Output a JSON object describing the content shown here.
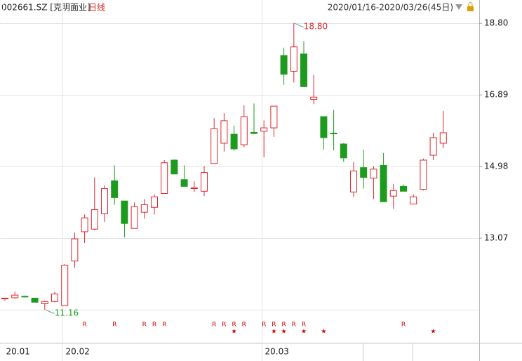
{
  "chart_data": {
    "type": "candlestick",
    "title": "002661.SZ [克明面业]",
    "period": "日线",
    "range_label": "2020/01/16-2020/03/26(45日)",
    "categories": [
      "20.01",
      null,
      null,
      null,
      null,
      null,
      "20.02",
      null,
      null,
      null,
      null,
      null,
      null,
      null,
      null,
      null,
      null,
      null,
      null,
      null,
      null,
      null,
      null,
      null,
      null,
      null,
      "20.03",
      null,
      null,
      null,
      null,
      null,
      null,
      null,
      null,
      null,
      null,
      null,
      null,
      null,
      null,
      null,
      null,
      null,
      null
    ],
    "open": [
      11.45,
      11.48,
      11.52,
      11.47,
      11.32,
      11.38,
      11.27,
      12.46,
      13.24,
      13.31,
      13.72,
      14.6,
      14.06,
      13.33,
      13.76,
      13.89,
      14.26,
      15.15,
      14.63,
      14.4,
      14.32,
      15.06,
      15.6,
      15.84,
      15.56,
      15.89,
      15.92,
      16.01,
      17.94,
      17.52,
      17.98,
      16.77,
      16.31,
      15.87,
      15.58,
      14.3,
      14.95,
      14.67,
      15.01,
      14.19,
      14.45,
      13.98,
      14.37,
      15.28,
      15.6
    ],
    "high": [
      11.48,
      11.64,
      11.54,
      11.48,
      11.4,
      11.64,
      12.38,
      13.22,
      13.7,
      14.69,
      14.48,
      15.01,
      14.06,
      14.02,
      14.11,
      14.24,
      15.15,
      15.17,
      15.01,
      14.58,
      14.99,
      16.27,
      16.4,
      16.07,
      16.61,
      16.66,
      16.21,
      16.59,
      18.15,
      18.8,
      18.32,
      17.42,
      16.31,
      16.49,
      15.6,
      15.1,
      15.43,
      14.99,
      15.34,
      14.52,
      14.5,
      14.24,
      15.19,
      15.88,
      16.46
    ],
    "low": [
      11.4,
      11.46,
      11.49,
      11.36,
      11.16,
      11.36,
      11.27,
      12.28,
      12.94,
      13.28,
      13.5,
      13.96,
      13.09,
      13.33,
      13.59,
      13.7,
      14.26,
      14.78,
      14.45,
      14.3,
      14.19,
      15.06,
      15.38,
      15.4,
      15.49,
      15.84,
      15.23,
      15.77,
      17.16,
      17.22,
      17.11,
      16.64,
      15.43,
      15.41,
      15.1,
      14.17,
      14.39,
      14.11,
      14.04,
      13.85,
      14.32,
      13.98,
      14.34,
      15.15,
      15.47
    ],
    "close": [
      11.47,
      11.55,
      11.5,
      11.36,
      11.38,
      11.58,
      12.35,
      13.05,
      13.61,
      13.83,
      14.39,
      14.15,
      13.46,
      13.91,
      13.96,
      14.17,
      15.08,
      14.78,
      14.45,
      14.41,
      14.82,
      15.99,
      16.2,
      15.45,
      16.31,
      15.86,
      16.01,
      16.59,
      17.44,
      18.17,
      17.11,
      16.83,
      15.75,
      15.85,
      15.21,
      14.86,
      14.69,
      14.91,
      14.04,
      14.34,
      14.32,
      14.17,
      15.15,
      15.75,
      15.88
    ],
    "signals_r": [
      null,
      null,
      null,
      null,
      null,
      null,
      null,
      null,
      "R",
      null,
      null,
      "R",
      null,
      null,
      "R",
      "R",
      "R",
      null,
      null,
      null,
      null,
      "R",
      "R",
      "R",
      "R",
      null,
      "R",
      "R",
      "R",
      "R",
      "R",
      null,
      null,
      null,
      null,
      null,
      null,
      null,
      null,
      null,
      "R",
      null,
      null,
      null,
      null
    ],
    "signals_star": [
      null,
      null,
      null,
      null,
      null,
      null,
      null,
      null,
      null,
      null,
      null,
      null,
      null,
      null,
      null,
      null,
      null,
      null,
      null,
      null,
      null,
      null,
      null,
      "★",
      null,
      null,
      null,
      "★",
      "★",
      null,
      "★",
      null,
      "★",
      null,
      null,
      null,
      null,
      null,
      null,
      null,
      null,
      null,
      null,
      "★",
      null
    ],
    "annotations": [
      {
        "label": "18.80",
        "value": 18.8
      },
      {
        "label": "11.16",
        "value": 11.16
      }
    ],
    "ylim": [
      10.28,
      19.42
    ],
    "yticks": [
      {
        "value": 18.8,
        "label": "18.80"
      },
      16.89,
      14.98,
      13.07
    ],
    "ygrid": [
      18.8,
      16.89,
      14.98,
      13.07,
      11.16
    ],
    "up_color": "#e0262e",
    "down_color": "#1e9b1e"
  }
}
